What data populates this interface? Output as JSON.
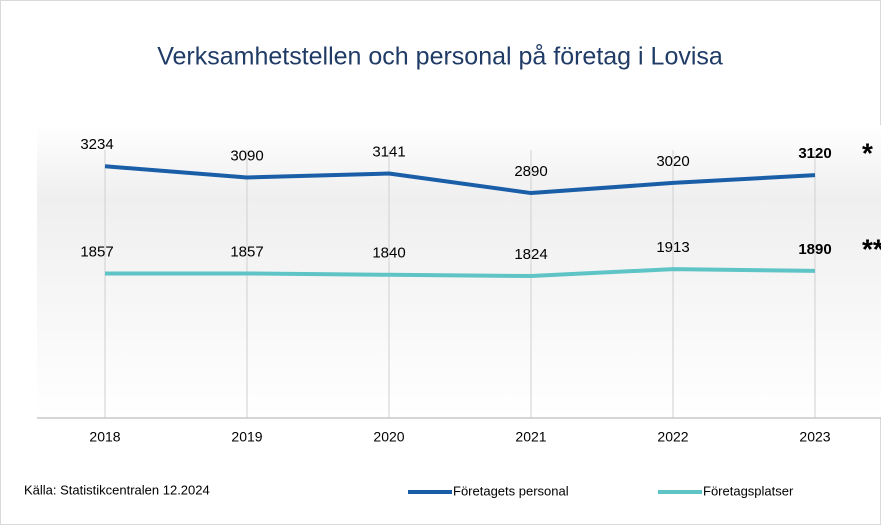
{
  "chart_data": {
    "type": "line",
    "title": "Verksamhetstellen och personal på företag i Lovisa",
    "categories": [
      "2018",
      "2019",
      "2020",
      "2021",
      "2022",
      "2023"
    ],
    "series": [
      {
        "name": "Företagets personal",
        "color": "#1a5ea8",
        "values": [
          3234,
          3090,
          3141,
          2890,
          3020,
          3120
        ]
      },
      {
        "name": "Företagsplatser",
        "color": "#5ec4c6",
        "values": [
          1857,
          1857,
          1840,
          1824,
          1913,
          1890
        ]
      }
    ],
    "annotations": [
      "*",
      "**"
    ],
    "source": "Källa: Statistikcentralen 12.2024",
    "ylim": [
      0,
      3700
    ],
    "grid": true,
    "legend": "bottom"
  }
}
